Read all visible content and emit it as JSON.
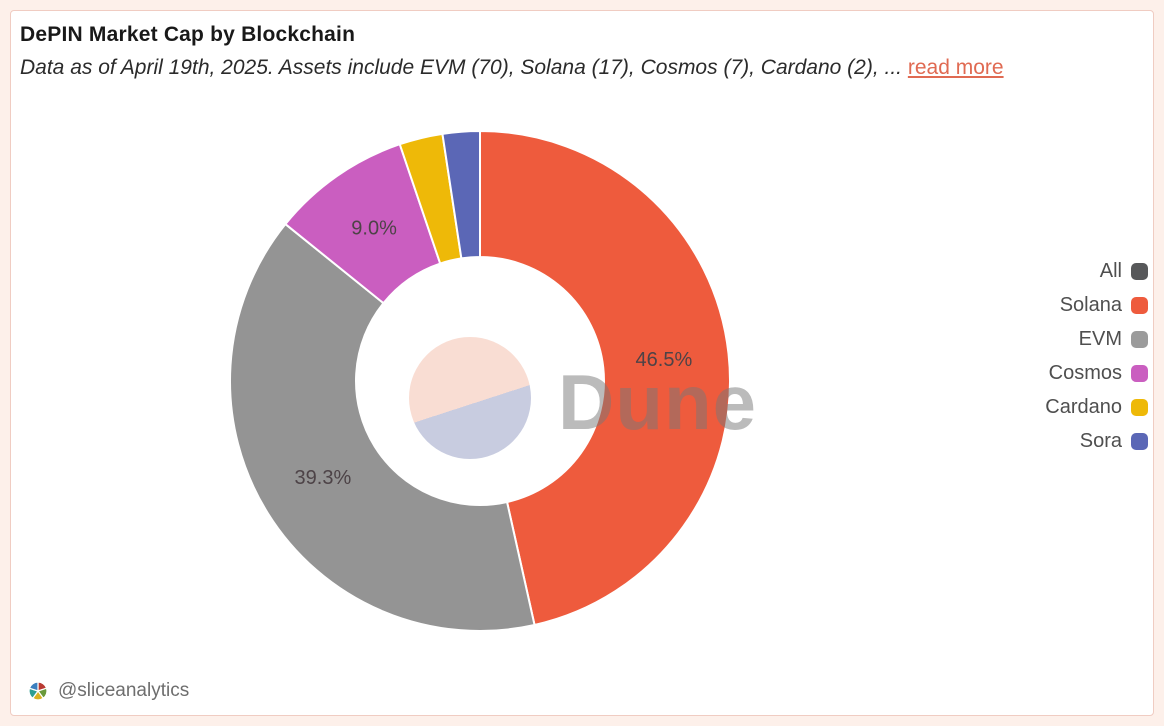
{
  "card": {
    "title": "DePIN Market Cap by Blockchain",
    "subtitle": "Data as of April 19th, 2025. Assets include EVM (70), Solana (17), Cosmos (7), Cardano (2), ...",
    "read_more_label": "read more"
  },
  "chart_data": {
    "type": "pie",
    "donut": true,
    "title": "DePIN Market Cap by Blockchain",
    "unit": "%",
    "slices": [
      {
        "label": "Solana",
        "value": 46.5,
        "color": "#ee5b3d",
        "label_visible": true
      },
      {
        "label": "EVM",
        "value": 39.3,
        "color": "#949494",
        "label_visible": true
      },
      {
        "label": "Cosmos",
        "value": 9.0,
        "color": "#ca5ec0",
        "label_visible": true
      },
      {
        "label": "Cardano",
        "value": 2.8,
        "color": "#eeb908",
        "label_visible": false
      },
      {
        "label": "Sora",
        "value": 2.4,
        "color": "#5b67b6",
        "label_visible": false
      }
    ],
    "visible_slice_labels": [
      "46.5%",
      "39.3%",
      "9.0%"
    ],
    "legend_position": "right",
    "legend": [
      {
        "label": "All",
        "color": "#57585a"
      },
      {
        "label": "Solana",
        "color": "#ee5b3d"
      },
      {
        "label": "EVM",
        "color": "#9b9b9b"
      },
      {
        "label": "Cosmos",
        "color": "#ca5ec0"
      },
      {
        "label": "Cardano",
        "color": "#eeb908"
      },
      {
        "label": "Sora",
        "color": "#5b67b6"
      }
    ],
    "watermark": "Dune",
    "center_disc_colors": {
      "top": "#f9ddd3",
      "bottom": "#c8cce0"
    }
  },
  "footer": {
    "handle": "@sliceanalytics"
  },
  "colors": {
    "page_background": "#fdf0ea",
    "card_background": "#ffffff",
    "card_border": "#f0ccc2",
    "link": "#e06a52",
    "slice_label_text": "#4d4347",
    "legend_text": "#4f4f4f",
    "footer_text": "#6e6e6e"
  }
}
